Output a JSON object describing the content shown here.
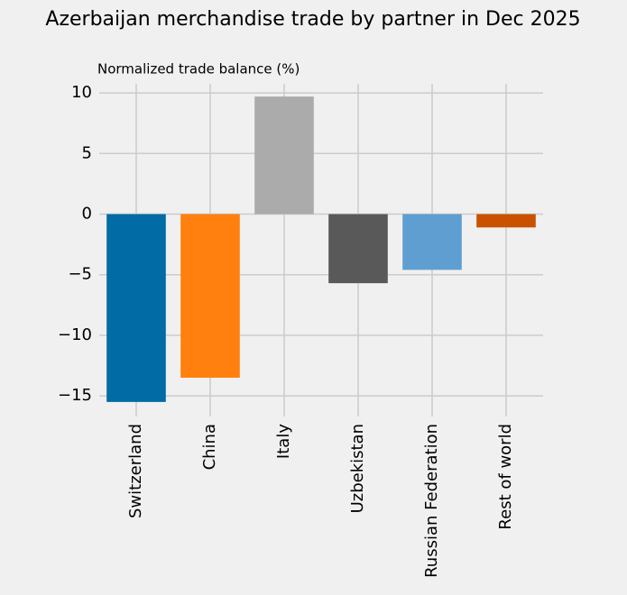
{
  "chart_data": {
    "type": "bar",
    "title": "Azerbaijan merchandise trade by partner in Dec 2025",
    "subtitle": "Normalized trade balance (%)",
    "categories": [
      "Switzerland",
      "China",
      "Italy",
      "Uzbekistan",
      "Russian Federation",
      "Rest of world"
    ],
    "values": [
      -15.5,
      -13.5,
      9.7,
      -5.7,
      -4.6,
      -1.1
    ],
    "colors": [
      "#006ba4",
      "#ff800e",
      "#ababab",
      "#595959",
      "#5f9ed1",
      "#c85200"
    ],
    "ylim": [
      -16.7,
      10.75
    ],
    "yticks": [
      {
        "value": -15,
        "label": "−15"
      },
      {
        "value": -10,
        "label": "−10"
      },
      {
        "value": -5,
        "label": "−5"
      },
      0,
      5,
      10
    ],
    "grid": true
  }
}
